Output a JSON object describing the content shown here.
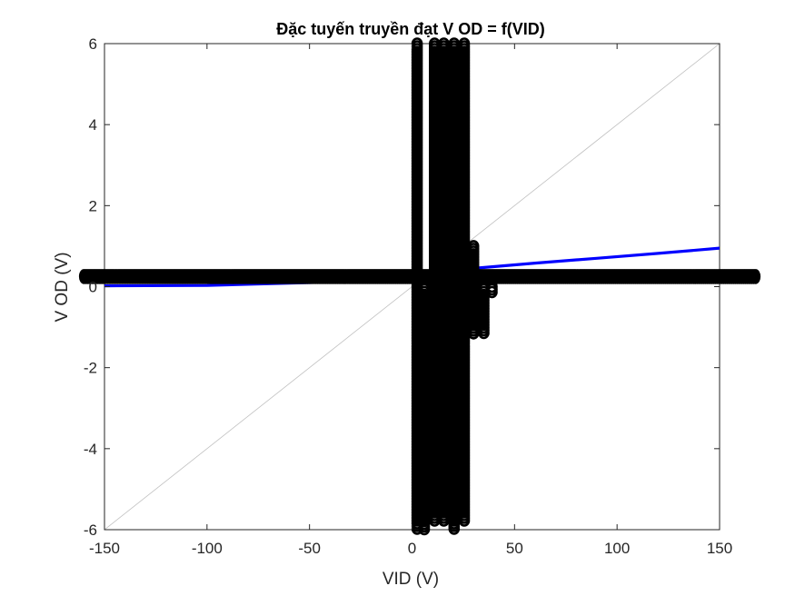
{
  "chart_data": {
    "type": "line",
    "title": "Đặc tuyến truyền đạt V OD = f(VID)",
    "xlabel": "VID (V)",
    "ylabel": "V OD (V)",
    "xlim": [
      -150,
      150
    ],
    "ylim": [
      -6,
      6
    ],
    "xticks": [
      -150,
      -100,
      -50,
      0,
      50,
      100,
      150
    ],
    "yticks": [
      -6,
      -4,
      -2,
      0,
      2,
      4,
      6
    ],
    "xtick_labels": [
      "-150",
      "-100",
      "-50",
      "0",
      "50",
      "100",
      "150"
    ],
    "ytick_labels": [
      "-6",
      "-4",
      "-2",
      "0",
      "2",
      "4",
      "6"
    ],
    "grid": false,
    "legend": "none",
    "series": [
      {
        "color": "#c0c0c0",
        "style": "thin-line",
        "x": [
          -150,
          150
        ],
        "y": [
          -6,
          6
        ]
      },
      {
        "color": "#0000ff",
        "style": "line",
        "x": [
          -150,
          -100,
          -50,
          0,
          30,
          60,
          90,
          120,
          150
        ],
        "y": [
          0.02,
          0.03,
          0.1,
          0.18,
          0.45,
          0.58,
          0.7,
          0.82,
          0.95
        ]
      },
      {
        "color": "#000000",
        "style": "marker-band",
        "x": [
          -160,
          168
        ],
        "y": [
          0.25,
          0.25
        ]
      },
      {
        "color": "#000000",
        "style": "marker-column",
        "columns": [
          {
            "x": 2.5,
            "ymin": -6,
            "ymax": 6
          },
          {
            "x": 6,
            "ymin": -6,
            "ymax": 0
          },
          {
            "x": 11,
            "ymin": -5.8,
            "ymax": 6
          },
          {
            "x": 15.5,
            "ymin": -5.8,
            "ymax": 6
          },
          {
            "x": 20.5,
            "ymin": -6,
            "ymax": 6
          },
          {
            "x": 25.5,
            "ymin": -5.8,
            "ymax": 6
          },
          {
            "x": 30,
            "ymin": -1.2,
            "ymax": 1.0
          },
          {
            "x": 35,
            "ymin": -1.2,
            "ymax": 0
          },
          {
            "x": 39,
            "ymin": -0.2,
            "ymax": 0
          }
        ]
      }
    ]
  }
}
